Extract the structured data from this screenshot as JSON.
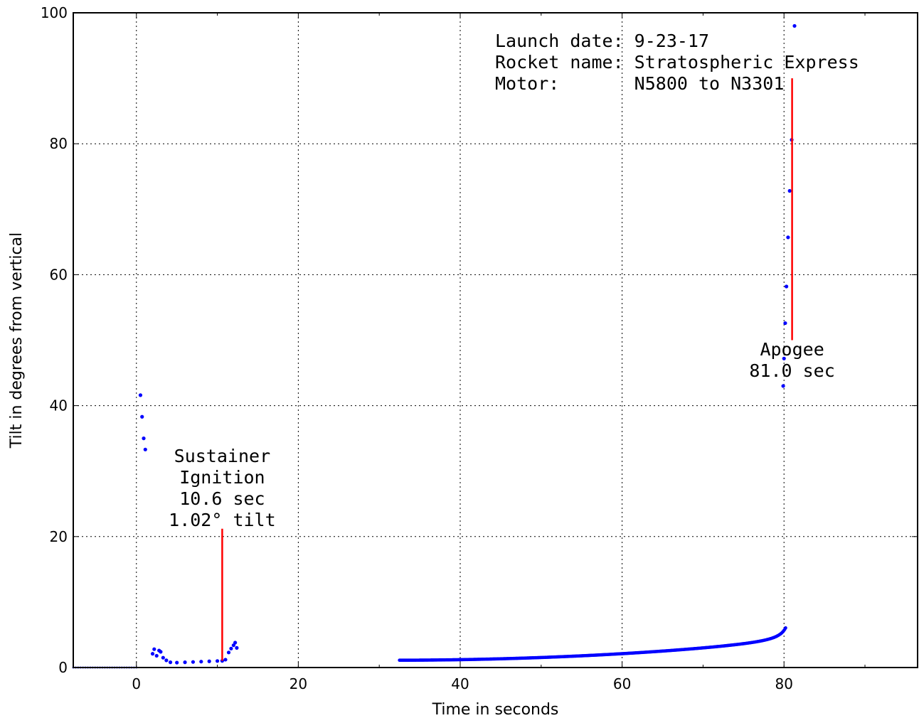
{
  "chart_data": {
    "type": "scatter",
    "title": "",
    "xlabel": "Time in seconds",
    "ylabel": "Tilt in degrees from vertical",
    "xlim": [
      -7.8,
      96.5
    ],
    "ylim": [
      0,
      100
    ],
    "x_ticks": [
      0,
      20,
      40,
      60,
      80
    ],
    "x_minor_ticks": [
      -10,
      10,
      30,
      50,
      70,
      90
    ],
    "y_ticks": [
      0,
      20,
      40,
      60,
      80,
      100
    ],
    "grid": true,
    "colors": {
      "points": "#0000ff",
      "markers": "#ff0000",
      "grid": "#000000"
    },
    "info_lines": [
      "Launch date: 9-23-17",
      "Rocket name: Stratospheric Express",
      "Motor:       N5800 to N3301"
    ],
    "series": [
      {
        "points_pre_launch": [
          [
            -7.8,
            0
          ],
          [
            -5,
            0
          ],
          [
            -2,
            0
          ],
          [
            0,
            0
          ]
        ],
        "points_boost": [
          [
            0.5,
            41.6
          ],
          [
            0.7,
            38.3
          ],
          [
            0.9,
            35.0
          ],
          [
            1.1,
            33.3
          ]
        ],
        "points_coast": [
          [
            2.0,
            2.1
          ],
          [
            2.2,
            2.8
          ],
          [
            2.5,
            1.8
          ],
          [
            2.8,
            2.6
          ],
          [
            3.0,
            2.4
          ],
          [
            3.3,
            1.5
          ],
          [
            3.7,
            1.1
          ],
          [
            4.2,
            0.8
          ],
          [
            5,
            0.75
          ],
          [
            6,
            0.8
          ],
          [
            7,
            0.85
          ],
          [
            8,
            0.9
          ],
          [
            9,
            0.95
          ],
          [
            10,
            1.0
          ],
          [
            10.6,
            1.02
          ],
          [
            11.0,
            1.2
          ],
          [
            11.4,
            2.3
          ],
          [
            11.7,
            2.9
          ],
          [
            12.0,
            3.4
          ],
          [
            12.2,
            3.8
          ],
          [
            12.4,
            3.0
          ]
        ],
        "curve_start": 32.5,
        "curve_end": 80.2,
        "points_apogee": [
          [
            79.9,
            43.0
          ],
          [
            80.0,
            47.2
          ],
          [
            80.15,
            52.6
          ],
          [
            80.3,
            58.2
          ],
          [
            80.5,
            65.7
          ],
          [
            80.7,
            72.8
          ],
          [
            80.95,
            80.6
          ],
          [
            81.3,
            98.0
          ]
        ]
      }
    ],
    "markers": [
      {
        "x": 10.6,
        "y_from": 1.02,
        "y_to": 21.2,
        "lines": [
          "Sustainer",
          "Ignition",
          "10.6 sec",
          "1.02° tilt"
        ]
      },
      {
        "x": 81.0,
        "y_from": 50.0,
        "y_to": 90.0,
        "lines": [
          "Apogee",
          "81.0 sec"
        ]
      }
    ]
  }
}
